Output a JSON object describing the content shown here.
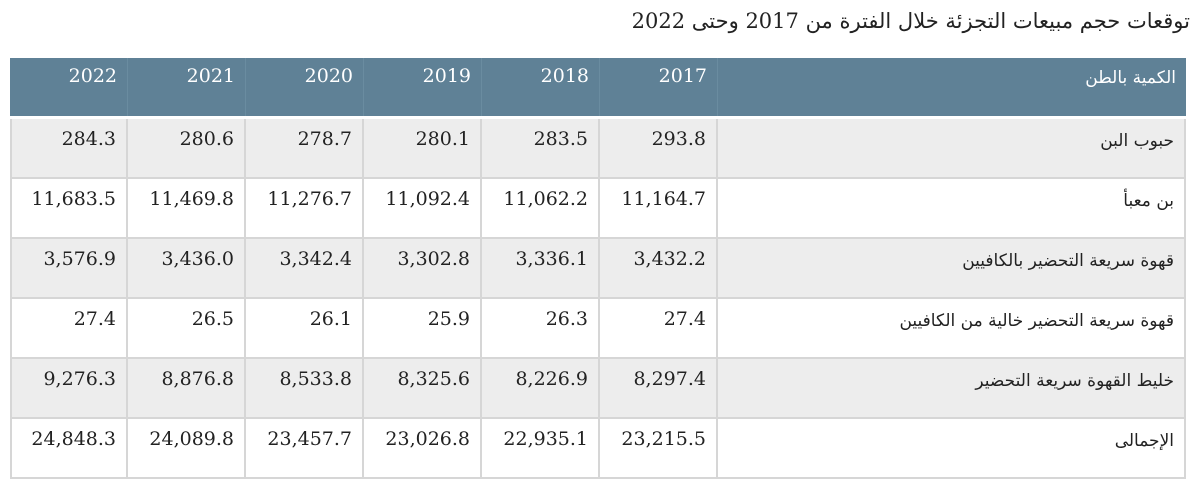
{
  "title": "توقعات حجم مبيعات التجزئة خلال الفترة من 2017 وحتى 2022",
  "table": {
    "header": {
      "label": "الكمية بالطن",
      "years": [
        "2022",
        "2021",
        "2020",
        "2019",
        "2018",
        "2017"
      ]
    },
    "rows": [
      {
        "label": "حبوب البن",
        "values": [
          "284.3",
          "280.6",
          "278.7",
          "280.1",
          "283.5",
          "293.8"
        ],
        "shaded": true
      },
      {
        "label": "بن معبأ",
        "values": [
          "11,683.5",
          "11,469.8",
          "11,276.7",
          "11,092.4",
          "11,062.2",
          "11,164.7"
        ],
        "shaded": false
      },
      {
        "label": "قهوة سريعة التحضير بالكافيين",
        "values": [
          "3,576.9",
          "3,436.0",
          "3,342.4",
          "3,302.8",
          "3,336.1",
          "3,432.2"
        ],
        "shaded": true
      },
      {
        "label": "قهوة سريعة التحضير خالية من الكافيين",
        "values": [
          "27.4",
          "26.5",
          "26.1",
          "25.9",
          "26.3",
          "27.4"
        ],
        "shaded": false
      },
      {
        "label": "خليط القهوة سريعة التحضير",
        "values": [
          "9,276.3",
          "8,876.8",
          "8,533.8",
          "8,325.6",
          "8,226.9",
          "8,297.4"
        ],
        "shaded": true
      },
      {
        "label": "الإجمالى",
        "values": [
          "24,848.3",
          "24,089.8",
          "23,457.7",
          "23,026.8",
          "22,935.1",
          "23,215.5"
        ],
        "shaded": false
      }
    ]
  },
  "colors": {
    "header_bg": "#5f8196",
    "header_text": "#ffffff",
    "shaded_row": "#ededed",
    "grid": "#d6d6d6"
  }
}
